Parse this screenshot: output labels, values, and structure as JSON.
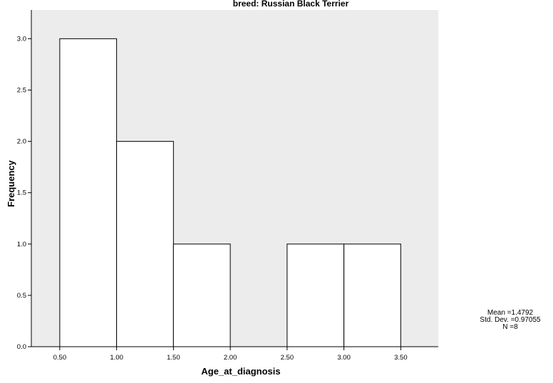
{
  "chart_data": {
    "type": "bar",
    "title": "breed: Russian Black Terrier",
    "xlabel": "Age_at_diagnosis",
    "ylabel": "Frequency",
    "bins": [
      {
        "start": 0.5,
        "end": 1.0,
        "value": 3
      },
      {
        "start": 1.0,
        "end": 1.5,
        "value": 2
      },
      {
        "start": 1.5,
        "end": 2.0,
        "value": 1
      },
      {
        "start": 2.0,
        "end": 2.5,
        "value": 0
      },
      {
        "start": 2.5,
        "end": 3.0,
        "value": 1
      },
      {
        "start": 3.0,
        "end": 3.5,
        "value": 1
      }
    ],
    "xticks": [
      "0.50",
      "1.00",
      "1.50",
      "2.00",
      "2.50",
      "3.00",
      "3.50"
    ],
    "yticks": [
      "0.0",
      "0.5",
      "1.0",
      "1.5",
      "2.0",
      "2.5",
      "3.0"
    ],
    "xlim": [
      0.25,
      3.83
    ],
    "ylim": [
      0,
      3.28
    ],
    "grid": false,
    "plot_background": "#ececec",
    "bar_fill": "#ffffff",
    "bar_stroke": "#000000"
  },
  "stats": {
    "mean": "Mean =1.4792",
    "std_dev": "Std. Dev. =0.97055",
    "n": "N =8"
  }
}
